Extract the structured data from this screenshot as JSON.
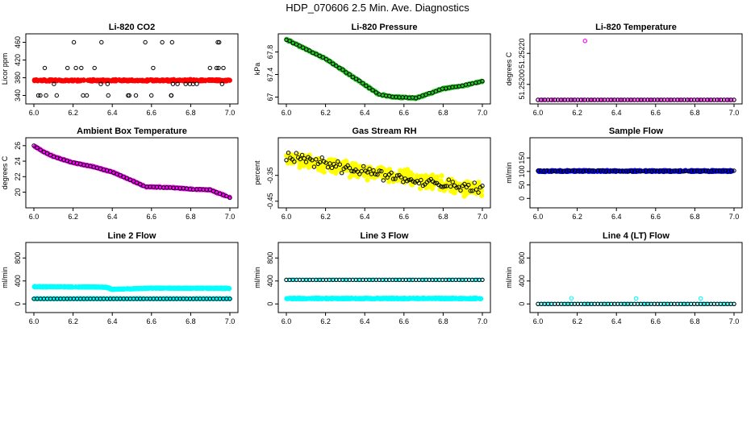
{
  "page": {
    "title": "HDP_070606  2.5 Min. Ave. Diagnostics"
  },
  "colors": {
    "black": "#000000",
    "red": "#ff0000",
    "green": "#22cc22",
    "magenta": "#ff00ff",
    "yellow": "#ffff00",
    "blue": "#0000ff",
    "cyan": "#00ffff"
  },
  "chart_data": [
    {
      "type": "scatter",
      "title": "Li-820 CO2",
      "ylabel": "Licor ppm",
      "xlim": [
        6.0,
        7.0
      ],
      "x_ticks": [
        "6.0",
        "6.2",
        "6.4",
        "6.6",
        "6.8",
        "7.0"
      ],
      "ylim": [
        330,
        470
      ],
      "y_ticks": [
        340,
        380,
        420,
        460
      ],
      "series": [
        {
          "name": "co2-avg",
          "color": "red",
          "style": "dense",
          "fn": "flat",
          "params": [
            373,
            375,
            1.5
          ]
        },
        {
          "name": "co2-samples",
          "color": "black",
          "style": "levels",
          "levels": [
            340,
            366,
            402,
            460
          ],
          "n": 40
        }
      ]
    },
    {
      "type": "scatter",
      "title": "Li-820 Pressure",
      "ylabel": "kPa",
      "xlim": [
        6.0,
        7.0
      ],
      "x_ticks": [
        "6.0",
        "6.2",
        "6.4",
        "6.6",
        "6.8",
        "7.0"
      ],
      "ylim": [
        66.95,
        68.05
      ],
      "y_ticks": [
        67.0,
        67.4,
        67.8
      ],
      "series": [
        {
          "name": "pressure-avg",
          "color": "green",
          "style": "dense",
          "fn": "pw",
          "pts": [
            [
              6.0,
              68.02
            ],
            [
              6.1,
              67.85
            ],
            [
              6.2,
              67.68
            ],
            [
              6.3,
              67.45
            ],
            [
              6.4,
              67.22
            ],
            [
              6.47,
              67.05
            ],
            [
              6.55,
              67.0
            ],
            [
              6.62,
              66.99
            ],
            [
              6.66,
              66.98
            ],
            [
              6.72,
              67.05
            ],
            [
              6.8,
              67.15
            ],
            [
              6.9,
              67.2
            ],
            [
              7.0,
              67.28
            ]
          ],
          "jit": 0.015
        },
        {
          "name": "pressure-samples",
          "color": "black",
          "style": "every",
          "fn": "pw",
          "pts": [
            [
              6.0,
              68.02
            ],
            [
              6.1,
              67.85
            ],
            [
              6.2,
              67.68
            ],
            [
              6.3,
              67.45
            ],
            [
              6.4,
              67.22
            ],
            [
              6.47,
              67.05
            ],
            [
              6.55,
              67.0
            ],
            [
              6.62,
              66.99
            ],
            [
              6.66,
              66.98
            ],
            [
              6.72,
              67.05
            ],
            [
              6.8,
              67.15
            ],
            [
              6.9,
              67.2
            ],
            [
              7.0,
              67.28
            ]
          ],
          "jit": 0.01,
          "n": 60
        }
      ]
    },
    {
      "type": "scatter",
      "title": "Li-820 Temperature",
      "ylabel": "degrees C",
      "xlim": [
        6.0,
        7.0
      ],
      "x_ticks": [
        "6.0",
        "6.2",
        "6.4",
        "6.6",
        "6.8",
        "7.0"
      ],
      "ylim": [
        51.2519,
        51.2523
      ],
      "y_ticks": [
        51.252,
        51.2522
      ],
      "y_tick_labels": [
        "51.25200",
        "51.25220"
      ],
      "series": [
        {
          "name": "temp-avg",
          "color": "magenta",
          "style": "every",
          "fn": "flat",
          "params": [
            51.2519,
            51.2519,
            0
          ],
          "n": 80
        },
        {
          "name": "temp-samples",
          "color": "black",
          "style": "every",
          "fn": "flat",
          "params": [
            51.2519,
            51.2519,
            0
          ],
          "n": 60
        },
        {
          "name": "temp-outlier",
          "color": "magenta",
          "style": "points",
          "x": [
            6.24
          ],
          "y": [
            51.25228
          ]
        }
      ]
    },
    {
      "type": "scatter",
      "title": "Ambient Box Temperature",
      "ylabel": "degrees C",
      "xlim": [
        6.0,
        7.0
      ],
      "x_ticks": [
        "6.0",
        "6.2",
        "6.4",
        "6.6",
        "6.8",
        "7.0"
      ],
      "ylim": [
        18.5,
        26.5
      ],
      "y_ticks": [
        20,
        22,
        24,
        26
      ],
      "series": [
        {
          "name": "box-avg",
          "color": "magenta",
          "style": "dense",
          "fn": "pw",
          "pts": [
            [
              6.0,
              26.0
            ],
            [
              6.05,
              25.2
            ],
            [
              6.1,
              24.6
            ],
            [
              6.2,
              23.8
            ],
            [
              6.3,
              23.3
            ],
            [
              6.4,
              22.6
            ],
            [
              6.5,
              21.5
            ],
            [
              6.57,
              20.7
            ],
            [
              6.7,
              20.6
            ],
            [
              6.8,
              20.4
            ],
            [
              6.9,
              20.3
            ],
            [
              7.0,
              19.3
            ]
          ],
          "jit": 0.06
        },
        {
          "name": "box-samples",
          "color": "black",
          "style": "every",
          "fn": "pw",
          "pts": [
            [
              6.0,
              26.0
            ],
            [
              6.05,
              25.2
            ],
            [
              6.1,
              24.6
            ],
            [
              6.2,
              23.8
            ],
            [
              6.3,
              23.3
            ],
            [
              6.4,
              22.6
            ],
            [
              6.5,
              21.5
            ],
            [
              6.57,
              20.7
            ],
            [
              6.7,
              20.6
            ],
            [
              6.8,
              20.4
            ],
            [
              6.9,
              20.3
            ],
            [
              7.0,
              19.3
            ]
          ],
          "jit": 0.04,
          "n": 60
        }
      ]
    },
    {
      "type": "scatter",
      "title": "Gas Stream RH",
      "ylabel": "percent",
      "xlim": [
        6.0,
        7.0
      ],
      "x_ticks": [
        "6.0",
        "6.2",
        "6.4",
        "6.6",
        "6.8",
        "7.0"
      ],
      "ylim": [
        -0.46,
        -0.22
      ],
      "y_ticks": [
        -0.45,
        -0.35
      ],
      "y_tick_labels": [
        "-0.45",
        "-0.35"
      ],
      "series": [
        {
          "name": "rh-avg",
          "color": "yellow",
          "style": "dense",
          "fn": "lin",
          "params": [
            -0.28,
            -0.41,
            0.04
          ],
          "n": 420
        },
        {
          "name": "rh-samples",
          "color": "black",
          "style": "every",
          "fn": "lin",
          "params": [
            -0.28,
            -0.41,
            0.03
          ],
          "n": 100
        }
      ]
    },
    {
      "type": "scatter",
      "title": "Sample Flow",
      "ylabel": "ml/min",
      "xlim": [
        6.0,
        7.0
      ],
      "x_ticks": [
        "6.0",
        "6.2",
        "6.4",
        "6.6",
        "6.8",
        "7.0"
      ],
      "ylim": [
        -20,
        210
      ],
      "y_ticks": [
        0,
        50,
        100,
        150
      ],
      "series": [
        {
          "name": "sflow-avg",
          "color": "blue",
          "style": "dense",
          "fn": "flat",
          "params": [
            100,
            103,
            1.2
          ]
        },
        {
          "name": "sflow-samples",
          "color": "black",
          "style": "every",
          "fn": "flat",
          "params": [
            100,
            103,
            0.8
          ],
          "n": 70
        }
      ]
    },
    {
      "type": "scatter",
      "title": "Line 2 Flow",
      "ylabel": "ml/min",
      "xlim": [
        6.0,
        7.0
      ],
      "x_ticks": [
        "6.0",
        "6.2",
        "6.4",
        "6.6",
        "6.8",
        "7.0"
      ],
      "ylim": [
        -80,
        1000
      ],
      "y_ticks": [
        0,
        400,
        800
      ],
      "series": [
        {
          "name": "l2-avg-high",
          "color": "cyan",
          "style": "dense",
          "fn": "pw",
          "pts": [
            [
              6.0,
              300
            ],
            [
              6.3,
              295
            ],
            [
              6.37,
              290
            ],
            [
              6.4,
              255
            ],
            [
              6.6,
              275
            ],
            [
              7.0,
              272
            ]
          ],
          "jit": 5
        },
        {
          "name": "l2-avg-low",
          "color": "cyan",
          "style": "dense",
          "fn": "flat",
          "params": [
            90,
            90,
            2
          ]
        },
        {
          "name": "l2-samples",
          "color": "black",
          "style": "every",
          "fn": "flat",
          "params": [
            90,
            90,
            0
          ],
          "n": 60
        }
      ]
    },
    {
      "type": "scatter",
      "title": "Line 3 Flow",
      "ylabel": "ml/min",
      "xlim": [
        6.0,
        7.0
      ],
      "x_ticks": [
        "6.0",
        "6.2",
        "6.4",
        "6.6",
        "6.8",
        "7.0"
      ],
      "ylim": [
        -80,
        1000
      ],
      "y_ticks": [
        0,
        400,
        800
      ],
      "series": [
        {
          "name": "l3-avg-low",
          "color": "cyan",
          "style": "dense",
          "fn": "flat",
          "params": [
            90,
            100,
            3
          ]
        },
        {
          "name": "l3-avg-high",
          "color": "cyan",
          "style": "every",
          "fn": "flat",
          "params": [
            420,
            420,
            3
          ],
          "n": 75
        },
        {
          "name": "l3-samples",
          "color": "black",
          "style": "every",
          "fn": "flat",
          "params": [
            420,
            420,
            0
          ],
          "n": 60
        }
      ]
    },
    {
      "type": "scatter",
      "title": "Line 4 (LT) Flow",
      "ylabel": "ml/min",
      "xlim": [
        6.0,
        7.0
      ],
      "x_ticks": [
        "6.0",
        "6.2",
        "6.4",
        "6.6",
        "6.8",
        "7.0"
      ],
      "ylim": [
        -80,
        1000
      ],
      "y_ticks": [
        0,
        400,
        800
      ],
      "series": [
        {
          "name": "l4-avg",
          "color": "cyan",
          "style": "every",
          "fn": "flat",
          "params": [
            0,
            0,
            0
          ],
          "n": 70
        },
        {
          "name": "l4-samples",
          "color": "black",
          "style": "every",
          "fn": "flat",
          "params": [
            0,
            0,
            0
          ],
          "n": 60
        },
        {
          "name": "l4-spikes",
          "color": "cyan",
          "style": "points",
          "x": [
            6.17,
            6.5,
            6.83
          ],
          "y": [
            100,
            95,
            95
          ]
        }
      ]
    }
  ]
}
